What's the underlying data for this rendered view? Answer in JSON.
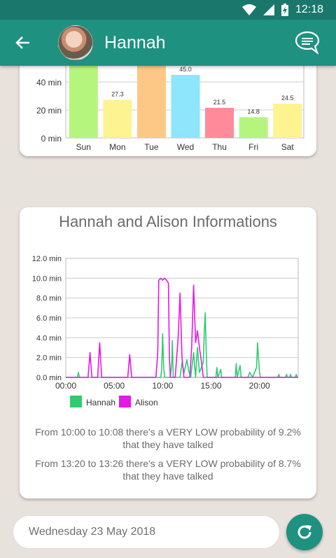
{
  "status_bar": {
    "time": "12:18"
  },
  "app_bar": {
    "title": "Hannah"
  },
  "week_chart": {
    "chart_data": {
      "type": "bar",
      "categories": [
        "Sun",
        "Mon",
        "Tue",
        "Wed",
        "Thu",
        "Fri",
        "Sat"
      ],
      "values": [
        60,
        27.3,
        60,
        45.0,
        21.5,
        14.8,
        24.5
      ],
      "value_labels": [
        "",
        "27.3",
        "",
        "45.0",
        "21.5",
        "14.8",
        "24.5"
      ],
      "bar_colors": [
        "#b5f57d",
        "#fdf391",
        "#fdc885",
        "#8de6fb",
        "#ff8a99",
        "#b5f57d",
        "#fdf391"
      ],
      "y_ticks": [
        "0 min",
        "20 min",
        "40 min"
      ],
      "ylim": [
        0,
        60
      ]
    }
  },
  "talk_chart": {
    "title": "Hannah and Alison Informations",
    "chart_data": {
      "type": "line",
      "x_ticks": [
        "00:00",
        "05:00",
        "10:00",
        "15:00",
        "20:00"
      ],
      "y_ticks": [
        "0.0 min",
        "2.0 min",
        "4.0 min",
        "6.0 min",
        "8.0 min",
        "10.0 min",
        "12.0 min"
      ],
      "xlim": [
        0,
        24
      ],
      "ylim": [
        0,
        12
      ],
      "series": [
        {
          "name": "Hannah",
          "color": "#2ecc71",
          "points": [
            [
              0,
              0
            ],
            [
              1.2,
              0
            ],
            [
              1.3,
              0.5
            ],
            [
              1.4,
              0
            ],
            [
              9.8,
              0
            ],
            [
              9.9,
              0.8
            ],
            [
              10.0,
              4.4
            ],
            [
              10.1,
              1.2
            ],
            [
              10.2,
              0
            ],
            [
              10.8,
              0
            ],
            [
              10.95,
              1.6
            ],
            [
              11.0,
              3.7
            ],
            [
              11.1,
              0
            ],
            [
              11.8,
              0
            ],
            [
              12.0,
              1.5
            ],
            [
              12.2,
              0.4
            ],
            [
              12.5,
              1.8
            ],
            [
              12.7,
              0.6
            ],
            [
              12.9,
              0
            ],
            [
              13.2,
              2.5
            ],
            [
              13.4,
              0
            ],
            [
              13.6,
              3.0
            ],
            [
              13.8,
              0.5
            ],
            [
              14.2,
              1.5
            ],
            [
              14.3,
              4.6
            ],
            [
              14.4,
              6.5
            ],
            [
              14.5,
              2.5
            ],
            [
              14.6,
              0
            ],
            [
              15.5,
              0
            ],
            [
              15.6,
              1.0
            ],
            [
              15.7,
              0
            ],
            [
              16.0,
              0.8
            ],
            [
              16.1,
              0
            ],
            [
              17.5,
              0
            ],
            [
              17.6,
              1.4
            ],
            [
              17.7,
              0
            ],
            [
              18.0,
              1.2
            ],
            [
              18.1,
              0
            ],
            [
              18.8,
              0
            ],
            [
              19.0,
              0.5
            ],
            [
              19.3,
              0
            ],
            [
              19.7,
              1.0
            ],
            [
              19.8,
              3.5
            ],
            [
              20.0,
              0.5
            ],
            [
              20.1,
              0
            ],
            [
              21.9,
              0
            ],
            [
              22.0,
              0.3
            ],
            [
              22.1,
              0
            ],
            [
              22.7,
              0
            ],
            [
              22.8,
              0.3
            ],
            [
              22.9,
              0
            ],
            [
              23.1,
              0
            ],
            [
              23.2,
              0.3
            ],
            [
              23.3,
              0
            ],
            [
              23.7,
              0
            ],
            [
              23.8,
              0.3
            ],
            [
              23.9,
              0
            ],
            [
              24,
              0
            ]
          ]
        },
        {
          "name": "Alison",
          "color": "#e619e6",
          "points": [
            [
              0,
              0
            ],
            [
              2.3,
              0
            ],
            [
              2.5,
              2.5
            ],
            [
              2.7,
              0
            ],
            [
              3.3,
              0
            ],
            [
              3.5,
              3.5
            ],
            [
              3.7,
              0
            ],
            [
              6.4,
              0
            ],
            [
              6.6,
              2.3
            ],
            [
              6.8,
              0
            ],
            [
              9.3,
              0
            ],
            [
              9.5,
              2.5
            ],
            [
              9.6,
              9.8
            ],
            [
              9.8,
              10.0
            ],
            [
              10.0,
              9.8
            ],
            [
              10.2,
              10.0
            ],
            [
              10.4,
              9.8
            ],
            [
              10.6,
              9.5
            ],
            [
              10.7,
              2.0
            ],
            [
              10.8,
              0
            ],
            [
              11.3,
              0
            ],
            [
              11.6,
              4.0
            ],
            [
              11.8,
              8.5
            ],
            [
              12.0,
              2.0
            ],
            [
              12.2,
              0
            ],
            [
              12.8,
              0
            ],
            [
              13.0,
              3.0
            ],
            [
              13.2,
              9.3
            ],
            [
              13.4,
              3.5
            ],
            [
              13.6,
              4.7
            ],
            [
              13.8,
              3.0
            ],
            [
              14.0,
              1.6
            ],
            [
              14.2,
              0
            ],
            [
              24,
              0
            ]
          ]
        }
      ]
    },
    "info_1": "From 10:00 to 10:08 there's a VERY LOW probability of 9.2% that they have talked",
    "info_2": "From 13:20 to 13:26 there's a VERY LOW probability of 8.7% that they have talked"
  },
  "date_field": {
    "value": "Wednesday 23 May 2018"
  },
  "colors": {
    "primary": "#1e9181",
    "primary_dark": "#19786b"
  }
}
